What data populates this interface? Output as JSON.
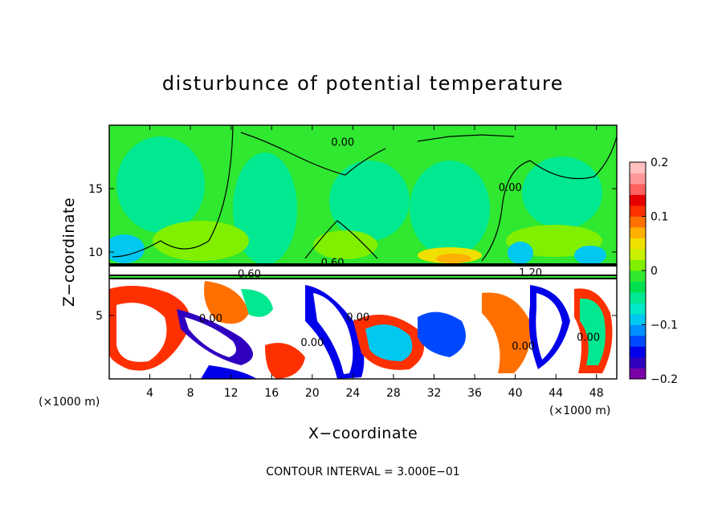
{
  "chart_data": {
    "type": "heatmap",
    "title": "disturbunce of potential temperature",
    "xlabel": "X−coordinate",
    "ylabel": "Z−coordinate",
    "x_unit": "(×1000 m)",
    "y_unit": "(×1000 m)",
    "xlim": [
      0,
      50
    ],
    "ylim": [
      0,
      20
    ],
    "x_ticks": [
      4,
      8,
      12,
      16,
      20,
      24,
      28,
      32,
      36,
      40,
      44,
      48
    ],
    "x_tick_labels": [
      "4",
      "8",
      "12",
      "16",
      "20",
      "24",
      "28",
      "32",
      "36",
      "40",
      "44",
      "48"
    ],
    "y_ticks": [
      5,
      10,
      15
    ],
    "y_tick_labels": [
      "5",
      "10",
      "15"
    ],
    "colorbar": {
      "min": -0.2,
      "max": 0.2,
      "ticks": [
        0.2,
        0.1,
        0,
        -0.1,
        -0.2
      ],
      "tick_labels": [
        "0.2",
        "0.1",
        "0",
        "−0.1",
        "−0.2"
      ],
      "colors": [
        "#7a00a8",
        "#3000c0",
        "#0000e8",
        "#0048ff",
        "#0090ff",
        "#00c8f0",
        "#00e8c8",
        "#00e890",
        "#00e050",
        "#30e830",
        "#80f000",
        "#c8f000",
        "#f0e000",
        "#ffb000",
        "#ff7000",
        "#ff3000",
        "#e80000",
        "#ff6060",
        "#ff9898",
        "#ffc0c0"
      ]
    },
    "contour_interval_text": "CONTOUR INTERVAL = 3.000E−01",
    "contour_labels": [
      {
        "text": "0.00",
        "x": 23.0,
        "z": 18.4
      },
      {
        "text": "0.00",
        "x": 39.5,
        "z": 14.8
      },
      {
        "text": "0.60",
        "x": 22.0,
        "z": 8.9
      },
      {
        "text": "0.60",
        "x": 13.8,
        "z": 8.0
      },
      {
        "text": "0.00",
        "x": 10.0,
        "z": 4.5
      },
      {
        "text": "0.00",
        "x": 24.5,
        "z": 4.6
      },
      {
        "text": "0.00",
        "x": 20.0,
        "z": 2.6
      },
      {
        "text": "1.20",
        "x": 41.5,
        "z": 8.1
      },
      {
        "text": "0.00",
        "x": 40.8,
        "z": 2.3
      },
      {
        "text": "0.00",
        "x": 47.2,
        "z": 3.0
      }
    ]
  }
}
